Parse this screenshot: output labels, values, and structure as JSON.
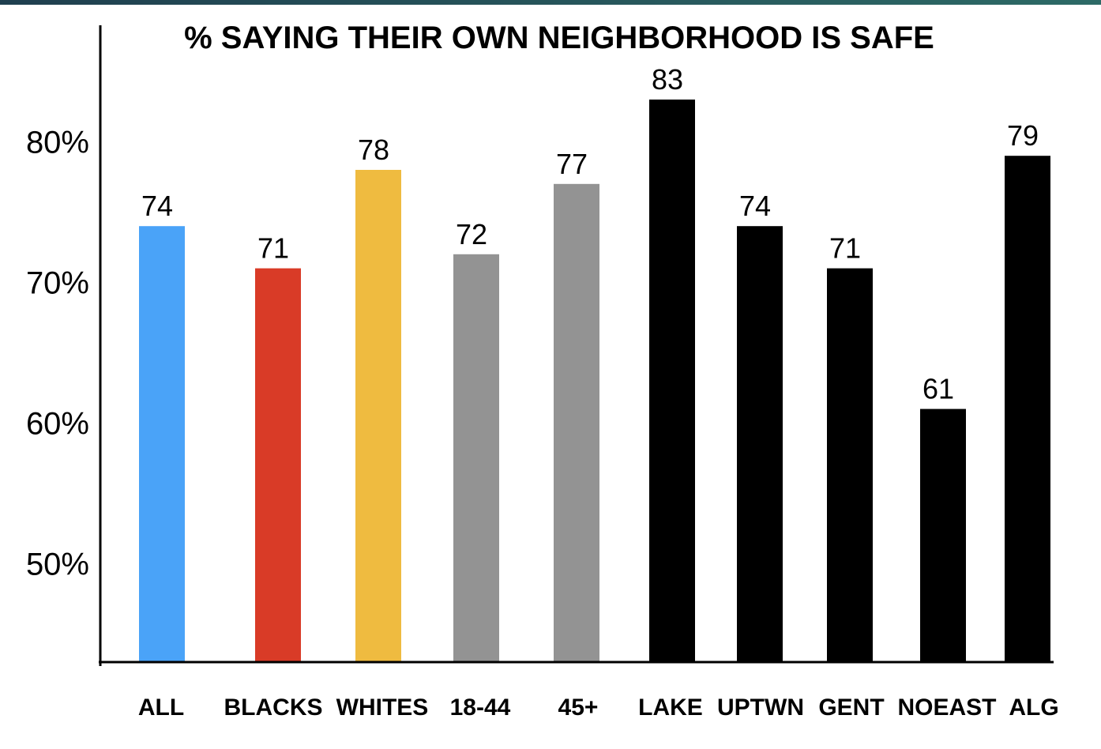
{
  "chart_data": {
    "type": "bar",
    "title": "% SAYING THEIR OWN NEIGHBORHOOD IS SAFE",
    "xlabel": "",
    "ylabel": "",
    "categories": [
      "ALL",
      "BLACKS",
      "WHITES",
      "18-44",
      "45+",
      "LAKE",
      "UPTWN",
      "GENT",
      "NOEAST",
      "ALG"
    ],
    "values": [
      74,
      71,
      78,
      72,
      77,
      83,
      74,
      71,
      61,
      79
    ],
    "data_labels": [
      "74",
      "71",
      "78",
      "72",
      "77",
      "83",
      "74",
      "71",
      "61",
      "79"
    ],
    "colors": [
      "#4aa3f8",
      "#d93b27",
      "#efbb40",
      "#939393",
      "#939393",
      "#000000",
      "#000000",
      "#000000",
      "#000000",
      "#000000"
    ],
    "y_ticks": [
      {
        "value": 80,
        "label": "80%"
      },
      {
        "value": 70,
        "label": "70%"
      },
      {
        "value": 60,
        "label": "60%"
      },
      {
        "value": 50,
        "label": "50%"
      }
    ],
    "ylim": [
      43,
      88
    ],
    "grid": false,
    "legend": "none"
  }
}
